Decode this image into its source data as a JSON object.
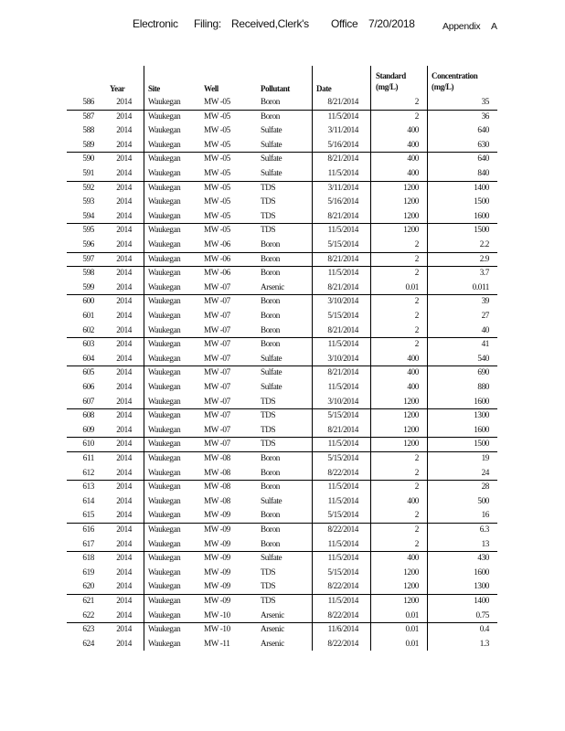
{
  "header": {
    "part1": "Electronic",
    "part2": "Filing:",
    "part3": "Received,Clerk's",
    "part4": "Office",
    "date": "7/20/2018",
    "appendix": "Appendix",
    "appendix_letter": "A"
  },
  "columns": {
    "year": "Year",
    "site": "Site",
    "well": "Well",
    "pollutant": "Pollutant",
    "date": "Date",
    "standard_line1": "Standard",
    "standard_line2": "(mg/L)",
    "concentration_line1": "Concentration",
    "concentration_line2": "(mg/L)"
  },
  "rows": [
    [
      "586",
      "2014",
      "Waukegan",
      "MW -05",
      "Boron",
      "8/21/2014",
      "2",
      "35"
    ],
    [
      "587",
      "2014",
      "Waukegan",
      "MW -05",
      "Boron",
      "11/5/2014",
      "2",
      "36"
    ],
    [
      "588",
      "2014",
      "Waukegan",
      "MW -05",
      "Sulfate",
      "3/11/2014",
      "400",
      "640"
    ],
    [
      "589",
      "2014",
      "Waukegan",
      "MW -05",
      "Sulfate",
      "5/16/2014",
      "400",
      "630"
    ],
    [
      "590",
      "2014",
      "Waukegan",
      "MW -05",
      "Sulfate",
      "8/21/2014",
      "400",
      "640"
    ],
    [
      "591",
      "2014",
      "Waukegan",
      "MW -05",
      "Sulfate",
      "11/5/2014",
      "400",
      "840"
    ],
    [
      "592",
      "2014",
      "Waukegan",
      "MW -05",
      "TDS",
      "3/11/2014",
      "1200",
      "1400"
    ],
    [
      "593",
      "2014",
      "Waukegan",
      "MW -05",
      "TDS",
      "5/16/2014",
      "1200",
      "1500"
    ],
    [
      "594",
      "2014",
      "Waukegan",
      "MW -05",
      "TDS",
      "8/21/2014",
      "1200",
      "1600"
    ],
    [
      "595",
      "2014",
      "Waukegan",
      "MW -05",
      "TDS",
      "11/5/2014",
      "1200",
      "1500"
    ],
    [
      "596",
      "2014",
      "Waukegan",
      "MW -06",
      "Boron",
      "5/15/2014",
      "2",
      "2.2"
    ],
    [
      "597",
      "2014",
      "Waukegan",
      "MW -06",
      "Boron",
      "8/21/2014",
      "2",
      "2.9"
    ],
    [
      "598",
      "2014",
      "Waukegan",
      "MW -06",
      "Boron",
      "11/5/2014",
      "2",
      "3.7"
    ],
    [
      "599",
      "2014",
      "Waukegan",
      "MW -07",
      "Arsenic",
      "8/21/2014",
      "0.01",
      "0.011"
    ],
    [
      "600",
      "2014",
      "Waukegan",
      "MW -07",
      "Boron",
      "3/10/2014",
      "2",
      "39"
    ],
    [
      "601",
      "2014",
      "Waukegan",
      "MW -07",
      "Boron",
      "5/15/2014",
      "2",
      "27"
    ],
    [
      "602",
      "2014",
      "Waukegan",
      "MW -07",
      "Boron",
      "8/21/2014",
      "2",
      "40"
    ],
    [
      "603",
      "2014",
      "Waukegan",
      "MW -07",
      "Boron",
      "11/5/2014",
      "2",
      "41"
    ],
    [
      "604",
      "2014",
      "Waukegan",
      "MW -07",
      "Sulfate",
      "3/10/2014",
      "400",
      "540"
    ],
    [
      "605",
      "2014",
      "Waukegan",
      "MW -07",
      "Sulfate",
      "8/21/2014",
      "400",
      "690"
    ],
    [
      "606",
      "2014",
      "Waukegan",
      "MW -07",
      "Sulfate",
      "11/5/2014",
      "400",
      "880"
    ],
    [
      "607",
      "2014",
      "Waukegan",
      "MW -07",
      "TDS",
      "3/10/2014",
      "1200",
      "1600"
    ],
    [
      "608",
      "2014",
      "Waukegan",
      "MW -07",
      "TDS",
      "5/15/2014",
      "1200",
      "1300"
    ],
    [
      "609",
      "2014",
      "Waukegan",
      "MW -07",
      "TDS",
      "8/21/2014",
      "1200",
      "1600"
    ],
    [
      "610",
      "2014",
      "Waukegan",
      "MW -07",
      "TDS",
      "11/5/2014",
      "1200",
      "1500"
    ],
    [
      "611",
      "2014",
      "Waukegan",
      "MW -08",
      "Boron",
      "5/15/2014",
      "2",
      "19"
    ],
    [
      "612",
      "2014",
      "Waukegan",
      "MW -08",
      "Boron",
      "8/22/2014",
      "2",
      "24"
    ],
    [
      "613",
      "2014",
      "Waukegan",
      "MW -08",
      "Boron",
      "11/5/2014",
      "2",
      "28"
    ],
    [
      "614",
      "2014",
      "Waukegan",
      "MW -08",
      "Sulfate",
      "11/5/2014",
      "400",
      "500"
    ],
    [
      "615",
      "2014",
      "Waukegan",
      "MW -09",
      "Boron",
      "5/15/2014",
      "2",
      "16"
    ],
    [
      "616",
      "2014",
      "Waukegan",
      "MW -09",
      "Boron",
      "8/22/2014",
      "2",
      "6.3"
    ],
    [
      "617",
      "2014",
      "Waukegan",
      "MW -09",
      "Boron",
      "11/5/2014",
      "2",
      "13"
    ],
    [
      "618",
      "2014",
      "Waukegan",
      "MW -09",
      "Sulfate",
      "11/5/2014",
      "400",
      "430"
    ],
    [
      "619",
      "2014",
      "Waukegan",
      "MW -09",
      "TDS",
      "5/15/2014",
      "1200",
      "1600"
    ],
    [
      "620",
      "2014",
      "Waukegan",
      "MW -09",
      "TDS",
      "8/22/2014",
      "1200",
      "1300"
    ],
    [
      "621",
      "2014",
      "Waukegan",
      "MW -09",
      "TDS",
      "11/5/2014",
      "1200",
      "1400"
    ],
    [
      "622",
      "2014",
      "Waukegan",
      "MW -10",
      "Arsenic",
      "8/22/2014",
      "0.01",
      "0.75"
    ],
    [
      "623",
      "2014",
      "Waukegan",
      "MW -10",
      "Arsenic",
      "11/6/2014",
      "0.01",
      "0.4"
    ],
    [
      "624",
      "2014",
      "Waukegan",
      "MW -11",
      "Arsenic",
      "8/22/2014",
      "0.01",
      "1.3"
    ]
  ]
}
